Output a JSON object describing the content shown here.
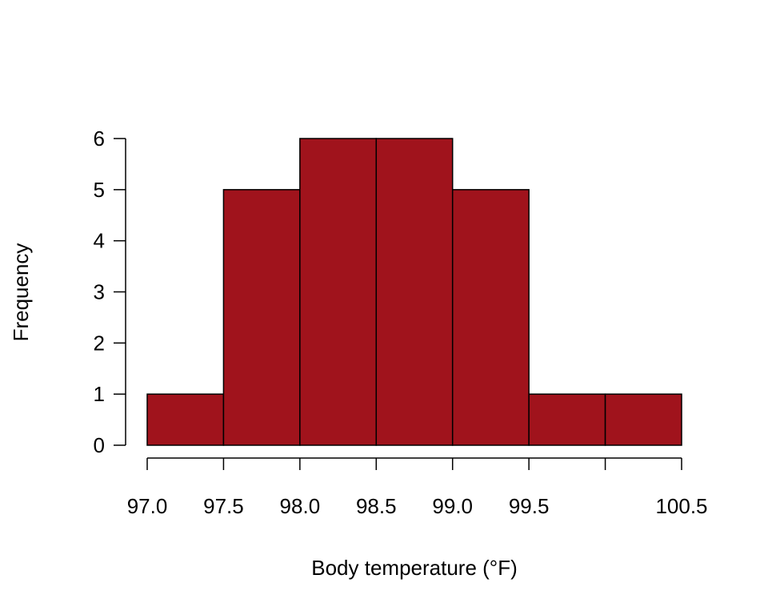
{
  "chart_data": {
    "type": "bar",
    "title": "",
    "xlabel": "Body temperature (°F)",
    "ylabel": "Frequency",
    "bins": [
      {
        "from": 97.0,
        "to": 97.5,
        "count": 1
      },
      {
        "from": 97.5,
        "to": 98.0,
        "count": 5
      },
      {
        "from": 98.0,
        "to": 98.5,
        "count": 6
      },
      {
        "from": 98.5,
        "to": 99.0,
        "count": 6
      },
      {
        "from": 99.0,
        "to": 99.5,
        "count": 5
      },
      {
        "from": 99.5,
        "to": 100.0,
        "count": 1
      },
      {
        "from": 100.0,
        "to": 100.5,
        "count": 1
      }
    ],
    "xlim": [
      97.0,
      100.5
    ],
    "ylim": [
      0,
      6
    ],
    "x_ticks": [
      97.0,
      97.5,
      98.0,
      98.5,
      99.0,
      99.5,
      100.0,
      100.5
    ],
    "x_tick_labels": [
      "97.0",
      "97.5",
      "98.0",
      "98.5",
      "99.0",
      "99.5",
      "",
      "100.5"
    ],
    "y_ticks": [
      0,
      1,
      2,
      3,
      4,
      5,
      6
    ],
    "y_tick_labels": [
      "0",
      "1",
      "2",
      "3",
      "4",
      "5",
      "6"
    ],
    "bar_color": "#A0131C",
    "edge_color": "#000000",
    "grid": false,
    "legend": "none"
  }
}
